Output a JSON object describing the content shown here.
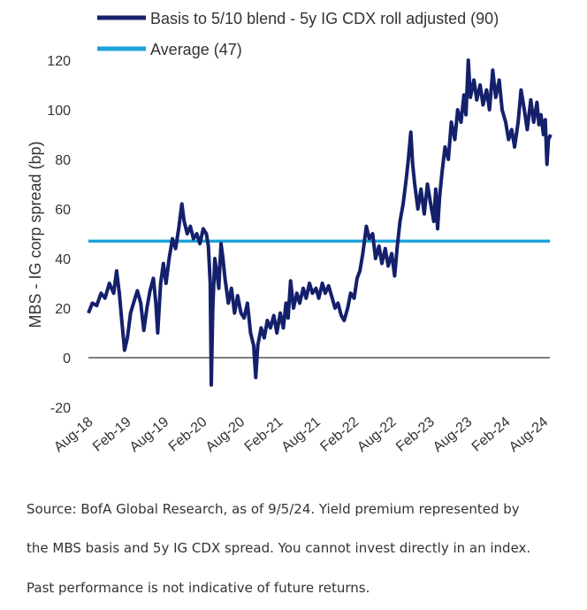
{
  "chart_data": {
    "type": "line",
    "ylabel": "MBS - IG corp spread (bp)",
    "ylim": [
      -20,
      120
    ],
    "yticks": [
      "120",
      "100",
      "80",
      "60",
      "40",
      "20",
      "0",
      "-20"
    ],
    "xticks": [
      "Aug-18",
      "Feb-19",
      "Aug-19",
      "Feb-20",
      "Aug-20",
      "Feb-21",
      "Aug-21",
      "Feb-22",
      "Aug-22",
      "Feb-23",
      "Aug-23",
      "Feb-24",
      "Aug-24"
    ],
    "x_range": [
      "2018-08",
      "2024-09"
    ],
    "legend_position": "top-left",
    "series": [
      {
        "name": "Basis to 5/10 blend - 5y IG CDX roll adjusted (90)",
        "color": "#14206b",
        "points": [
          [
            "2018-08-01",
            18
          ],
          [
            "2018-08-20",
            22
          ],
          [
            "2018-09-10",
            21
          ],
          [
            "2018-10-01",
            26
          ],
          [
            "2018-10-20",
            24
          ],
          [
            "2018-11-10",
            30
          ],
          [
            "2018-12-01",
            26
          ],
          [
            "2018-12-15",
            35
          ],
          [
            "2018-12-28",
            26
          ],
          [
            "2019-01-10",
            14
          ],
          [
            "2019-01-22",
            3
          ],
          [
            "2019-02-05",
            8
          ],
          [
            "2019-02-20",
            18
          ],
          [
            "2019-03-10",
            23
          ],
          [
            "2019-03-25",
            27
          ],
          [
            "2019-04-10",
            22
          ],
          [
            "2019-04-25",
            11
          ],
          [
            "2019-05-10",
            20
          ],
          [
            "2019-05-25",
            27
          ],
          [
            "2019-06-10",
            32
          ],
          [
            "2019-06-22",
            22
          ],
          [
            "2019-07-01",
            10
          ],
          [
            "2019-07-15",
            30
          ],
          [
            "2019-07-28",
            38
          ],
          [
            "2019-08-10",
            30
          ],
          [
            "2019-08-25",
            40
          ],
          [
            "2019-09-10",
            48
          ],
          [
            "2019-09-25",
            44
          ],
          [
            "2019-10-10",
            52
          ],
          [
            "2019-10-25",
            62
          ],
          [
            "2019-11-05",
            55
          ],
          [
            "2019-11-20",
            50
          ],
          [
            "2019-12-05",
            53
          ],
          [
            "2019-12-20",
            48
          ],
          [
            "2020-01-05",
            50
          ],
          [
            "2020-01-20",
            46
          ],
          [
            "2020-02-05",
            52
          ],
          [
            "2020-02-20",
            50
          ],
          [
            "2020-03-01",
            45
          ],
          [
            "2020-03-10",
            30
          ],
          [
            "2020-03-15",
            -11
          ],
          [
            "2020-03-22",
            20
          ],
          [
            "2020-04-01",
            40
          ],
          [
            "2020-04-10",
            35
          ],
          [
            "2020-04-20",
            28
          ],
          [
            "2020-05-01",
            46
          ],
          [
            "2020-05-10",
            40
          ],
          [
            "2020-05-20",
            32
          ],
          [
            "2020-06-05",
            22
          ],
          [
            "2020-06-20",
            28
          ],
          [
            "2020-07-05",
            18
          ],
          [
            "2020-07-20",
            25
          ],
          [
            "2020-08-05",
            18
          ],
          [
            "2020-08-20",
            16
          ],
          [
            "2020-09-05",
            22
          ],
          [
            "2020-09-20",
            10
          ],
          [
            "2020-10-05",
            5
          ],
          [
            "2020-10-15",
            -8
          ],
          [
            "2020-10-25",
            5
          ],
          [
            "2020-11-10",
            12
          ],
          [
            "2020-11-25",
            8
          ],
          [
            "2020-12-10",
            15
          ],
          [
            "2020-12-25",
            12
          ],
          [
            "2021-01-10",
            17
          ],
          [
            "2021-01-25",
            10
          ],
          [
            "2021-02-10",
            18
          ],
          [
            "2021-02-25",
            12
          ],
          [
            "2021-03-10",
            22
          ],
          [
            "2021-03-20",
            16
          ],
          [
            "2021-04-01",
            31
          ],
          [
            "2021-04-15",
            20
          ],
          [
            "2021-05-01",
            26
          ],
          [
            "2021-05-15",
            22
          ],
          [
            "2021-06-01",
            28
          ],
          [
            "2021-06-15",
            24
          ],
          [
            "2021-07-01",
            30
          ],
          [
            "2021-07-15",
            26
          ],
          [
            "2021-08-01",
            28
          ],
          [
            "2021-08-15",
            24
          ],
          [
            "2021-09-01",
            30
          ],
          [
            "2021-09-15",
            26
          ],
          [
            "2021-10-01",
            29
          ],
          [
            "2021-10-15",
            25
          ],
          [
            "2021-11-01",
            20
          ],
          [
            "2021-11-15",
            22
          ],
          [
            "2021-12-01",
            17
          ],
          [
            "2021-12-15",
            15
          ],
          [
            "2022-01-01",
            20
          ],
          [
            "2022-01-15",
            26
          ],
          [
            "2022-02-01",
            24
          ],
          [
            "2022-02-15",
            32
          ],
          [
            "2022-03-01",
            35
          ],
          [
            "2022-03-15",
            42
          ],
          [
            "2022-04-01",
            53
          ],
          [
            "2022-04-15",
            48
          ],
          [
            "2022-05-01",
            50
          ],
          [
            "2022-05-15",
            40
          ],
          [
            "2022-06-01",
            45
          ],
          [
            "2022-06-15",
            38
          ],
          [
            "2022-07-01",
            44
          ],
          [
            "2022-07-15",
            37
          ],
          [
            "2022-08-01",
            42
          ],
          [
            "2022-08-15",
            33
          ],
          [
            "2022-08-28",
            45
          ],
          [
            "2022-09-10",
            55
          ],
          [
            "2022-09-25",
            62
          ],
          [
            "2022-10-10",
            72
          ],
          [
            "2022-10-20",
            80
          ],
          [
            "2022-11-01",
            91
          ],
          [
            "2022-11-10",
            78
          ],
          [
            "2022-11-20",
            70
          ],
          [
            "2022-12-05",
            60
          ],
          [
            "2022-12-20",
            68
          ],
          [
            "2023-01-05",
            58
          ],
          [
            "2023-01-20",
            70
          ],
          [
            "2023-02-05",
            62
          ],
          [
            "2023-02-20",
            55
          ],
          [
            "2023-03-01",
            68
          ],
          [
            "2023-03-10",
            52
          ],
          [
            "2023-03-20",
            65
          ],
          [
            "2023-04-01",
            75
          ],
          [
            "2023-04-15",
            85
          ],
          [
            "2023-05-01",
            80
          ],
          [
            "2023-05-15",
            95
          ],
          [
            "2023-06-01",
            88
          ],
          [
            "2023-06-15",
            100
          ],
          [
            "2023-07-01",
            95
          ],
          [
            "2023-07-15",
            106
          ],
          [
            "2023-07-25",
            98
          ],
          [
            "2023-08-05",
            120
          ],
          [
            "2023-08-15",
            105
          ],
          [
            "2023-09-01",
            112
          ],
          [
            "2023-09-15",
            104
          ],
          [
            "2023-10-01",
            110
          ],
          [
            "2023-10-15",
            102
          ],
          [
            "2023-11-01",
            108
          ],
          [
            "2023-11-15",
            100
          ],
          [
            "2023-12-01",
            116
          ],
          [
            "2023-12-15",
            105
          ],
          [
            "2024-01-01",
            112
          ],
          [
            "2024-01-15",
            100
          ],
          [
            "2024-02-01",
            95
          ],
          [
            "2024-02-15",
            88
          ],
          [
            "2024-03-01",
            92
          ],
          [
            "2024-03-15",
            85
          ],
          [
            "2024-04-01",
            95
          ],
          [
            "2024-04-15",
            108
          ],
          [
            "2024-05-01",
            100
          ],
          [
            "2024-05-15",
            92
          ],
          [
            "2024-06-01",
            104
          ],
          [
            "2024-06-15",
            95
          ],
          [
            "2024-07-01",
            103
          ],
          [
            "2024-07-10",
            94
          ],
          [
            "2024-07-20",
            98
          ],
          [
            "2024-08-01",
            90
          ],
          [
            "2024-08-10",
            96
          ],
          [
            "2024-08-18",
            78
          ],
          [
            "2024-08-25",
            88
          ],
          [
            "2024-09-05",
            90
          ]
        ]
      },
      {
        "name": "Average (47)",
        "color": "#1aa3d9",
        "points": [
          [
            "2018-08-01",
            47
          ],
          [
            "2024-09-05",
            47
          ]
        ]
      }
    ]
  },
  "source_lines": [
    "Source: BofA Global Research, as of 9/5/24. Yield premium represented by",
    "the MBS basis and 5y IG CDX spread. You cannot invest directly in an index.",
    "Past performance is not indicative of future returns."
  ]
}
